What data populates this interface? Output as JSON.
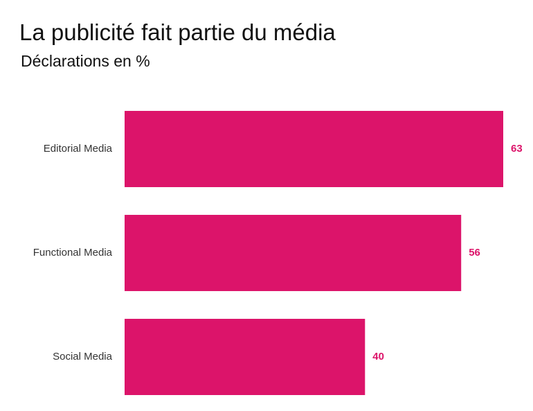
{
  "chart_data": {
    "type": "bar",
    "orientation": "horizontal",
    "title": "La publicité fait partie du média",
    "subtitle": "Déclarations en %",
    "categories": [
      "Editorial Media",
      "Functional Media",
      "Social Media"
    ],
    "values": [
      63,
      56,
      40
    ],
    "value_labels": [
      "63",
      "56",
      "40"
    ],
    "xlim": [
      0,
      63
    ],
    "grid": false,
    "legend": "none",
    "bar_color": "#dc146a",
    "label_color": "#dc146a"
  }
}
